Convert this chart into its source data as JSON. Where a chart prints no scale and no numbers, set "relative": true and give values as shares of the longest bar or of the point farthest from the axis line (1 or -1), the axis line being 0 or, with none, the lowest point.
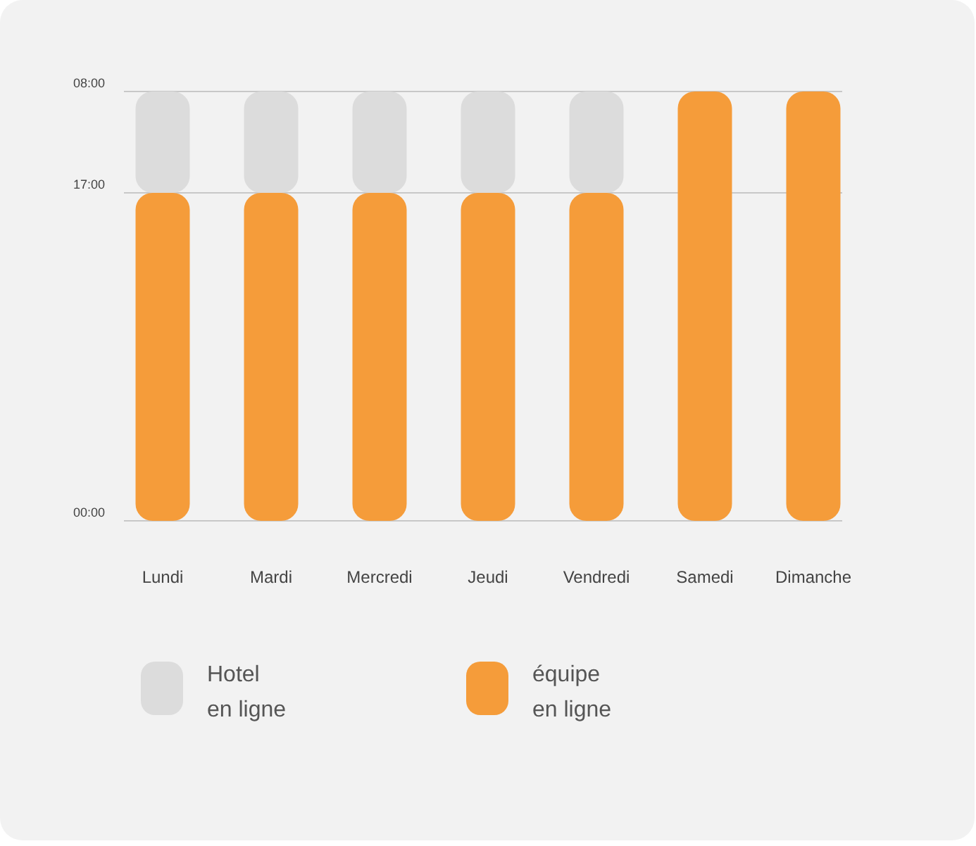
{
  "chart_data": {
    "type": "bar",
    "stacked": true,
    "relative": true,
    "categories": [
      "Lundi",
      "Mardi",
      "Mercredi",
      "Jeudi",
      "Vendredi",
      "Samedi",
      "Dimanche"
    ],
    "series": [
      {
        "name": "équipe en ligne",
        "color": "#f59c3a",
        "values": [
          0.764,
          0.764,
          0.764,
          0.764,
          0.764,
          1,
          1
        ]
      },
      {
        "name": "Hotel en ligne",
        "color": "#dcdcdc",
        "values": [
          0.236,
          0.236,
          0.236,
          0.236,
          0.236,
          null,
          null
        ]
      }
    ],
    "ref_lines": [
      {
        "axis": "y",
        "value": 0,
        "color": "#c8c8c8"
      },
      {
        "axis": "y",
        "value": 0.764,
        "color": "#c8c8c8"
      },
      {
        "axis": "y",
        "value": 1,
        "color": "#c8c8c8"
      }
    ],
    "annotations": [
      "00:00",
      "17:00",
      "08:00"
    ],
    "legend": "bottom"
  }
}
